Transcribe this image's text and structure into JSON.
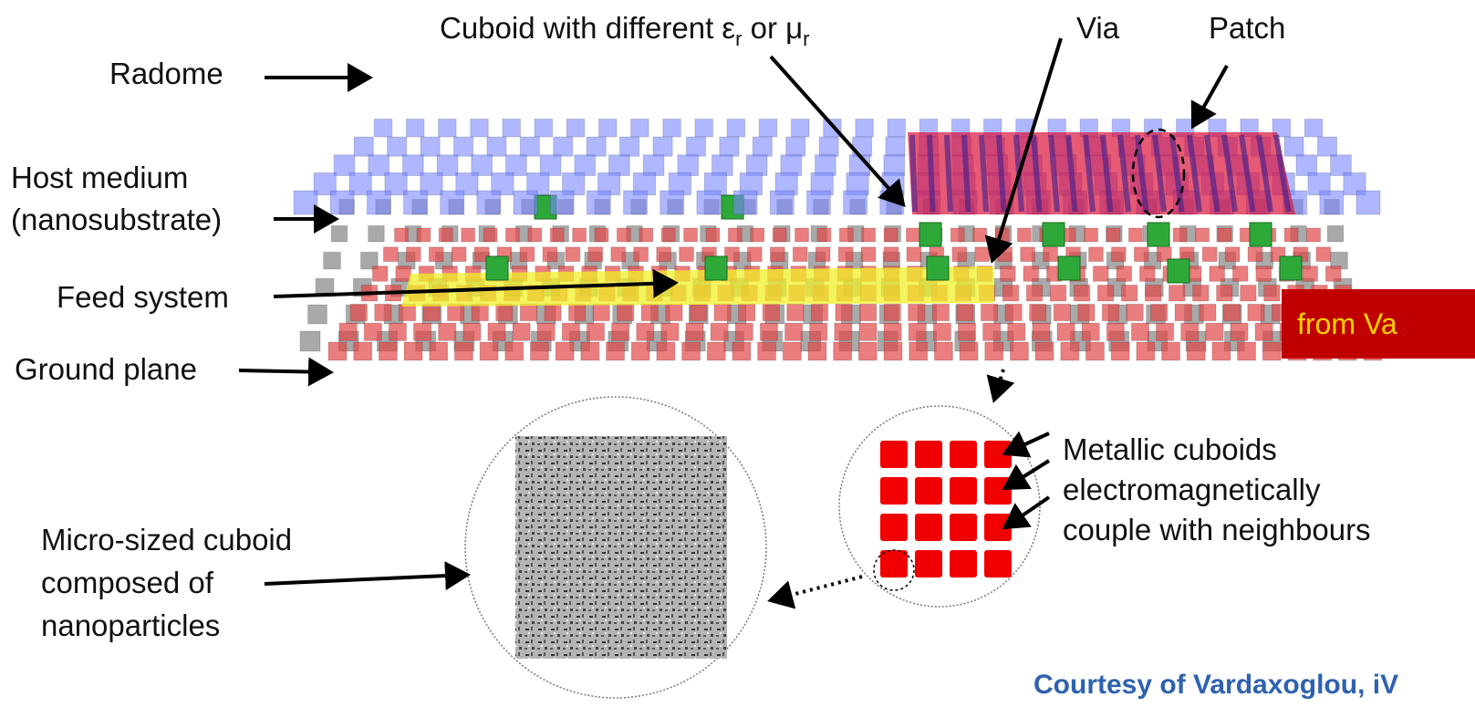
{
  "labels": {
    "cuboid": [
      "Cuboid with different ε",
      "r",
      " or μ",
      "r"
    ],
    "via": "Via",
    "patch": "Patch",
    "radome": "Radome",
    "host_medium": [
      "Host medium",
      "(nanosubstrate)"
    ],
    "feed_system": "Feed system",
    "ground_plane": "Ground plane",
    "metallic": [
      "Metallic cuboids",
      "electromagnetically",
      "couple with neighbours"
    ],
    "micro": [
      "Micro-sized cuboid",
      "composed of",
      "nanoparticles"
    ],
    "source_tag": "from Va",
    "courtesy": "Courtesy of Vardaxoglou, iV"
  }
}
